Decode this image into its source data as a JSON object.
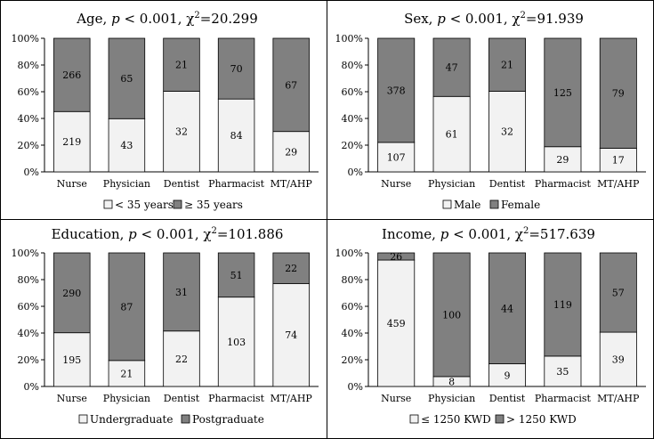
{
  "chart_data": [
    {
      "type": "bar",
      "stacked": "percent",
      "title_main": "Age, ",
      "title_p": "p",
      "title_rest": " < 0.001, χ",
      "title_sup": "2",
      "title_tail": "=20.299",
      "categories": [
        "Nurse",
        "Physician",
        "Dentist",
        "Pharmacist",
        "MT/AHP"
      ],
      "series": [
        {
          "name": "< 35 years",
          "values": [
            219,
            43,
            32,
            84,
            29
          ],
          "color": "#f2f2f2"
        },
        {
          "name": "≥ 35 years",
          "values": [
            266,
            65,
            21,
            70,
            67
          ],
          "color": "#808080"
        }
      ],
      "yticks": [
        "0%",
        "20%",
        "40%",
        "60%",
        "80%",
        "100%"
      ],
      "ylim": [
        0,
        100
      ],
      "legend": "bottom"
    },
    {
      "type": "bar",
      "stacked": "percent",
      "title_main": "Sex, ",
      "title_p": "p",
      "title_rest": " < 0.001, χ",
      "title_sup": "2",
      "title_tail": "=91.939",
      "categories": [
        "Nurse",
        "Physician",
        "Dentist",
        "Pharmacist",
        "MT/AHP"
      ],
      "series": [
        {
          "name": "Male",
          "values": [
            107,
            61,
            32,
            29,
            17
          ],
          "color": "#f2f2f2"
        },
        {
          "name": "Female",
          "values": [
            378,
            47,
            21,
            125,
            79
          ],
          "color": "#808080"
        }
      ],
      "yticks": [
        "0%",
        "20%",
        "40%",
        "60%",
        "80%",
        "100%"
      ],
      "ylim": [
        0,
        100
      ],
      "legend": "bottom"
    },
    {
      "type": "bar",
      "stacked": "percent",
      "title_main": "Education, ",
      "title_p": "p",
      "title_rest": " < 0.001, χ",
      "title_sup": "2",
      "title_tail": "=101.886",
      "categories": [
        "Nurse",
        "Physician",
        "Dentist",
        "Pharmacist",
        "MT/AHP"
      ],
      "series": [
        {
          "name": "Undergraduate",
          "values": [
            195,
            21,
            22,
            103,
            74
          ],
          "color": "#f2f2f2"
        },
        {
          "name": "Postgraduate",
          "values": [
            290,
            87,
            31,
            51,
            22
          ],
          "color": "#808080"
        }
      ],
      "yticks": [
        "0%",
        "20%",
        "40%",
        "60%",
        "80%",
        "100%"
      ],
      "ylim": [
        0,
        100
      ],
      "legend": "bottom"
    },
    {
      "type": "bar",
      "stacked": "percent",
      "title_main": "Income, ",
      "title_p": "p",
      "title_rest": " < 0.001, χ",
      "title_sup": "2",
      "title_tail": "=517.639",
      "categories": [
        "Nurse",
        "Physician",
        "Dentist",
        "Pharmacist",
        "MT/AHP"
      ],
      "series": [
        {
          "name": "≤ 1250 KWD",
          "values": [
            459,
            8,
            9,
            35,
            39
          ],
          "color": "#f2f2f2"
        },
        {
          "name": "> 1250 KWD",
          "values": [
            26,
            100,
            44,
            119,
            57
          ],
          "color": "#808080"
        }
      ],
      "yticks": [
        "0%",
        "20%",
        "40%",
        "60%",
        "80%",
        "100%"
      ],
      "ylim": [
        0,
        100
      ],
      "legend": "bottom"
    }
  ]
}
